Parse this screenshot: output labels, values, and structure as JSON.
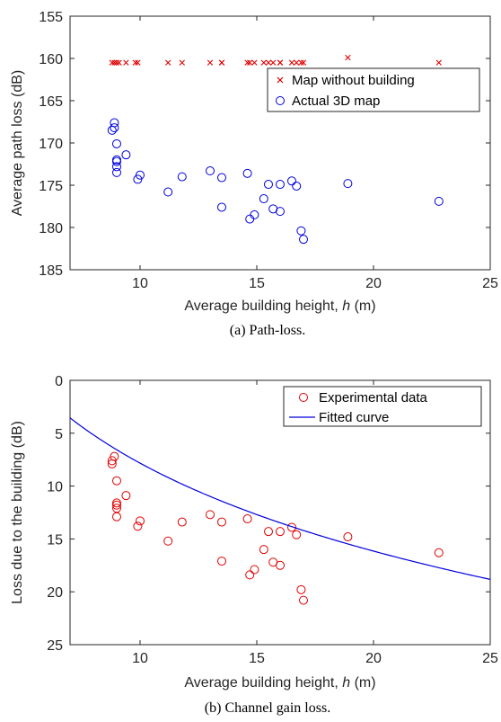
{
  "chart_data": [
    {
      "type": "scatter",
      "caption": "(a) Path-loss.",
      "xlabel_prefix": "Average building height, ",
      "xlabel_var": "h",
      "xlabel_suffix": " (m)",
      "ylabel": "Average path loss (dB)",
      "xlim": [
        7,
        25
      ],
      "ylim": [
        185,
        155
      ],
      "y_reversed": true,
      "xticks": [
        10,
        15,
        20,
        25
      ],
      "yticks": [
        155,
        160,
        165,
        170,
        175,
        180,
        185
      ],
      "legend_position": "top-right",
      "series": [
        {
          "name": "Map without building",
          "marker": "x",
          "color": "#e00000",
          "x": [
            8.8,
            8.9,
            9.0,
            9.1,
            9.4,
            9.8,
            9.9,
            11.2,
            11.8,
            13.0,
            13.5,
            13.5,
            14.6,
            14.7,
            14.9,
            15.3,
            15.5,
            15.7,
            16.0,
            16.0,
            16.5,
            16.7,
            16.9,
            17.0,
            18.9,
            22.8
          ],
          "y": [
            160.5,
            160.5,
            160.5,
            160.5,
            160.5,
            160.5,
            160.5,
            160.5,
            160.5,
            160.5,
            160.5,
            160.5,
            160.5,
            160.5,
            160.5,
            160.5,
            160.5,
            160.5,
            160.5,
            160.5,
            160.5,
            160.5,
            160.5,
            160.5,
            159.9,
            160.5
          ]
        },
        {
          "name": "Actual 3D map",
          "marker": "o",
          "color": "#0000dd",
          "x": [
            8.8,
            8.9,
            8.9,
            9.0,
            9.0,
            9.0,
            9.0,
            9.0,
            9.4,
            9.9,
            10.0,
            11.2,
            11.8,
            13.0,
            13.5,
            13.5,
            14.6,
            14.7,
            14.9,
            15.3,
            15.5,
            15.7,
            16.0,
            16.0,
            16.5,
            16.7,
            16.9,
            17.0,
            18.9,
            22.8
          ],
          "y": [
            168.5,
            168.2,
            167.6,
            172.0,
            172.2,
            172.8,
            173.5,
            170.1,
            171.4,
            174.3,
            173.8,
            175.8,
            174.0,
            173.3,
            177.6,
            174.1,
            173.6,
            179.0,
            178.5,
            176.6,
            174.9,
            177.8,
            178.1,
            174.9,
            174.5,
            175.1,
            180.4,
            181.4,
            174.8,
            176.9
          ]
        }
      ]
    },
    {
      "type": "scatter",
      "caption": "(b) Channel gain loss.",
      "xlabel_prefix": "Average building height, ",
      "xlabel_var": "h",
      "xlabel_suffix": " (m)",
      "ylabel": "Loss due to the building (dB)",
      "xlim": [
        7,
        25
      ],
      "ylim": [
        25,
        0
      ],
      "y_reversed": true,
      "xticks": [
        10,
        15,
        20,
        25
      ],
      "yticks": [
        0,
        5,
        10,
        15,
        20,
        25
      ],
      "legend_position": "top-right",
      "series": [
        {
          "name": "Experimental data",
          "marker": "o",
          "color": "#e00000",
          "x": [
            8.8,
            8.8,
            8.9,
            9.0,
            9.0,
            9.0,
            9.0,
            9.0,
            9.4,
            9.9,
            10.0,
            11.2,
            11.8,
            13.0,
            13.5,
            13.5,
            14.6,
            14.7,
            14.9,
            15.3,
            15.5,
            15.7,
            16.0,
            16.0,
            16.5,
            16.7,
            16.9,
            17.0,
            18.9,
            22.8
          ],
          "y": [
            7.9,
            7.6,
            7.2,
            9.5,
            11.6,
            11.8,
            12.1,
            12.9,
            10.9,
            13.8,
            13.3,
            15.2,
            13.4,
            12.7,
            17.1,
            13.4,
            13.1,
            18.4,
            17.9,
            16.0,
            14.3,
            17.2,
            17.5,
            14.3,
            13.9,
            14.6,
            19.8,
            20.8,
            14.8,
            16.3
          ]
        },
        {
          "name": "Fitted curve",
          "marker": "line",
          "color": "#0000dd",
          "curve": {
            "ln_coefficient": 12.0,
            "ln_offset": -19.8
          }
        }
      ]
    }
  ]
}
